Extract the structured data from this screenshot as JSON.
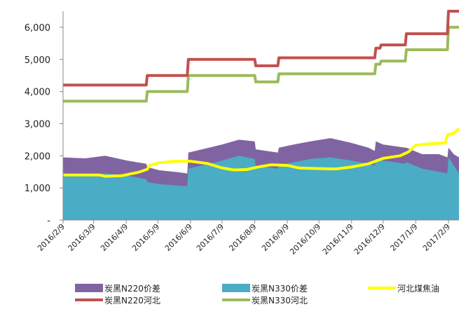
{
  "chart_data": {
    "type": "area",
    "title": "",
    "xlabel": "",
    "ylabel": "",
    "ylim": [
      0,
      6500
    ],
    "yticks": [
      {
        "value": 0,
        "label": "-"
      },
      {
        "value": 1000,
        "label": "1,000"
      },
      {
        "value": 2000,
        "label": "2,000"
      },
      {
        "value": 3000,
        "label": "3,000"
      },
      {
        "value": 4000,
        "label": "4,000"
      },
      {
        "value": 5000,
        "label": "5,000"
      },
      {
        "value": 6000,
        "label": "6,000"
      }
    ],
    "x_start": "2016/2/9",
    "x_end": "2017/2/19",
    "xticks": [
      "2016/2/9",
      "2016/3/9",
      "2016/4/9",
      "2016/5/9",
      "2016/6/9",
      "2016/7/9",
      "2016/8/9",
      "2016/9/9",
      "2016/10/9",
      "2016/11/9",
      "2016/12/9",
      "2017/1/9",
      "2017/2/9"
    ],
    "grid": false,
    "legend_position": "bottom",
    "legend": [
      {
        "label": "炭黑N220价差",
        "series": "n220_spread",
        "color": "#8064A2",
        "kind": "area"
      },
      {
        "label": "炭黑N330价差",
        "series": "n330_spread",
        "color": "#4BACC6",
        "kind": "area"
      },
      {
        "label": "河北煤焦油",
        "series": "coal_tar",
        "color": "#FFFF00",
        "kind": "line"
      },
      {
        "label": "炭黑N220河北",
        "series": "n220_hebei",
        "color": "#C0504D",
        "kind": "line"
      },
      {
        "label": "炭黑N330河北",
        "series": "n330_hebei",
        "color": "#9BBB59",
        "kind": "line"
      }
    ],
    "series": [
      {
        "id": "n220_hebei",
        "name": "炭黑N220河北",
        "color": "#C0504D",
        "kind": "line",
        "points": [
          [
            "2016/2/9",
            4200
          ],
          [
            "2016/4/28",
            4200
          ],
          [
            "2016/4/29",
            4500
          ],
          [
            "2016/6/6",
            4500
          ],
          [
            "2016/6/7",
            5000
          ],
          [
            "2016/8/9",
            5000
          ],
          [
            "2016/8/10",
            4800
          ],
          [
            "2016/8/31",
            4800
          ],
          [
            "2016/9/1",
            5050
          ],
          [
            "2016/12/1",
            5050
          ],
          [
            "2016/12/2",
            5350
          ],
          [
            "2016/12/6",
            5350
          ],
          [
            "2016/12/7",
            5450
          ],
          [
            "2016/12/30",
            5450
          ],
          [
            "2016/12/31",
            5800
          ],
          [
            "2017/2/8",
            5800
          ],
          [
            "2017/2/9",
            6500
          ],
          [
            "2017/2/19",
            6500
          ]
        ]
      },
      {
        "id": "n330_hebei",
        "name": "炭黑N330河北",
        "color": "#9BBB59",
        "kind": "line",
        "points": [
          [
            "2016/2/9",
            3700
          ],
          [
            "2016/4/28",
            3700
          ],
          [
            "2016/4/29",
            4000
          ],
          [
            "2016/6/6",
            4000
          ],
          [
            "2016/6/7",
            4500
          ],
          [
            "2016/8/9",
            4500
          ],
          [
            "2016/8/10",
            4300
          ],
          [
            "2016/8/31",
            4300
          ],
          [
            "2016/9/1",
            4550
          ],
          [
            "2016/12/1",
            4550
          ],
          [
            "2016/12/2",
            4850
          ],
          [
            "2016/12/6",
            4850
          ],
          [
            "2016/12/7",
            4950
          ],
          [
            "2016/12/30",
            4950
          ],
          [
            "2016/12/31",
            5300
          ],
          [
            "2017/2/8",
            5300
          ],
          [
            "2017/2/9",
            6000
          ],
          [
            "2017/2/19",
            6000
          ]
        ]
      },
      {
        "id": "coal_tar",
        "name": "河北煤焦油",
        "color": "#FFFF00",
        "kind": "line",
        "points": [
          [
            "2016/2/9",
            1400
          ],
          [
            "2016/3/15",
            1400
          ],
          [
            "2016/3/20",
            1360
          ],
          [
            "2016/4/5",
            1380
          ],
          [
            "2016/4/20",
            1480
          ],
          [
            "2016/4/29",
            1580
          ],
          [
            "2016/5/1",
            1700
          ],
          [
            "2016/5/10",
            1780
          ],
          [
            "2016/5/25",
            1830
          ],
          [
            "2016/6/9",
            1830
          ],
          [
            "2016/6/25",
            1760
          ],
          [
            "2016/7/9",
            1620
          ],
          [
            "2016/7/20",
            1560
          ],
          [
            "2016/8/1",
            1570
          ],
          [
            "2016/8/12",
            1650
          ],
          [
            "2016/8/25",
            1720
          ],
          [
            "2016/9/9",
            1700
          ],
          [
            "2016/9/20",
            1620
          ],
          [
            "2016/10/9",
            1600
          ],
          [
            "2016/10/25",
            1590
          ],
          [
            "2016/11/9",
            1650
          ],
          [
            "2016/11/25",
            1750
          ],
          [
            "2016/12/9",
            1920
          ],
          [
            "2016/12/25",
            2000
          ],
          [
            "2017/1/2",
            2120
          ],
          [
            "2017/1/9",
            2330
          ],
          [
            "2017/1/25",
            2380
          ],
          [
            "2017/2/6",
            2400
          ],
          [
            "2017/2/8",
            2650
          ],
          [
            "2017/2/14",
            2700
          ],
          [
            "2017/2/19",
            2850
          ]
        ]
      },
      {
        "id": "n330_spread",
        "name": "炭黑N330价差",
        "color": "#4BACC6",
        "kind": "area",
        "points": [
          [
            "2016/2/9",
            1350
          ],
          [
            "2016/3/1",
            1400
          ],
          [
            "2016/3/20",
            1450
          ],
          [
            "2016/4/10",
            1380
          ],
          [
            "2016/4/28",
            1270
          ],
          [
            "2016/4/29",
            1180
          ],
          [
            "2016/5/10",
            1120
          ],
          [
            "2016/5/25",
            1080
          ],
          [
            "2016/6/6",
            1050
          ],
          [
            "2016/6/7",
            1600
          ],
          [
            "2016/6/20",
            1700
          ],
          [
            "2016/7/9",
            1850
          ],
          [
            "2016/7/25",
            2000
          ],
          [
            "2016/8/9",
            1900
          ],
          [
            "2016/8/10",
            1650
          ],
          [
            "2016/8/20",
            1650
          ],
          [
            "2016/8/31",
            1600
          ],
          [
            "2016/9/1",
            1700
          ],
          [
            "2016/9/15",
            1800
          ],
          [
            "2016/10/1",
            1900
          ],
          [
            "2016/10/20",
            1950
          ],
          [
            "2016/11/9",
            1850
          ],
          [
            "2016/11/25",
            1750
          ],
          [
            "2016/12/1",
            1700
          ],
          [
            "2016/12/2",
            1900
          ],
          [
            "2016/12/9",
            1850
          ],
          [
            "2016/12/30",
            1750
          ],
          [
            "2016/12/31",
            1800
          ],
          [
            "2017/1/15",
            1600
          ],
          [
            "2017/1/31",
            1500
          ],
          [
            "2017/2/8",
            1450
          ],
          [
            "2017/2/9",
            1950
          ],
          [
            "2017/2/14",
            1700
          ],
          [
            "2017/2/19",
            1450
          ]
        ]
      },
      {
        "id": "n220_spread",
        "name": "炭黑N220价差",
        "color": "#8064A2",
        "kind": "area",
        "points": [
          [
            "2016/2/9",
            1950
          ],
          [
            "2016/3/1",
            1920
          ],
          [
            "2016/3/20",
            2000
          ],
          [
            "2016/4/10",
            1850
          ],
          [
            "2016/4/28",
            1750
          ],
          [
            "2016/4/29",
            1650
          ],
          [
            "2016/5/10",
            1550
          ],
          [
            "2016/5/25",
            1500
          ],
          [
            "2016/6/6",
            1450
          ],
          [
            "2016/6/7",
            2100
          ],
          [
            "2016/6/20",
            2200
          ],
          [
            "2016/7/9",
            2350
          ],
          [
            "2016/7/25",
            2500
          ],
          [
            "2016/8/9",
            2450
          ],
          [
            "2016/8/10",
            2200
          ],
          [
            "2016/8/20",
            2150
          ],
          [
            "2016/8/31",
            2100
          ],
          [
            "2016/9/1",
            2250
          ],
          [
            "2016/9/15",
            2350
          ],
          [
            "2016/10/1",
            2450
          ],
          [
            "2016/10/20",
            2550
          ],
          [
            "2016/11/9",
            2400
          ],
          [
            "2016/11/25",
            2250
          ],
          [
            "2016/12/1",
            2150
          ],
          [
            "2016/12/2",
            2450
          ],
          [
            "2016/12/9",
            2350
          ],
          [
            "2016/12/30",
            2250
          ],
          [
            "2016/12/31",
            2250
          ],
          [
            "2017/1/15",
            2050
          ],
          [
            "2017/1/31",
            2050
          ],
          [
            "2017/2/8",
            1950
          ],
          [
            "2017/2/9",
            2250
          ],
          [
            "2017/2/14",
            2050
          ],
          [
            "2017/2/19",
            1950
          ]
        ]
      }
    ]
  }
}
